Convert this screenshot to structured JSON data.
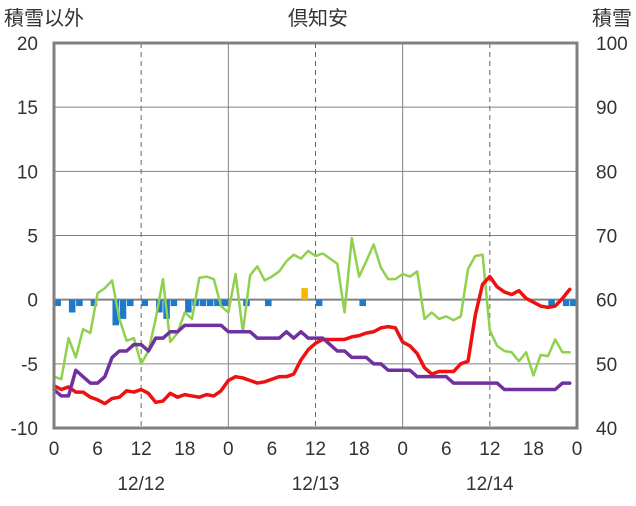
{
  "chart_data": {
    "type": "line",
    "title": "倶知安",
    "left_axis": {
      "label": "積雪以外",
      "ylim": [
        -10,
        20
      ],
      "ticks": [
        "20",
        "15",
        "10",
        "5",
        "0",
        "-5",
        "-10"
      ],
      "tick_values": [
        20,
        15,
        10,
        5,
        0,
        -5,
        -10
      ]
    },
    "right_axis": {
      "label": "積雪",
      "ylim": [
        40,
        100
      ],
      "ticks": [
        "100",
        "90",
        "80",
        "70",
        "60",
        "50",
        "40"
      ],
      "tick_values": [
        100,
        90,
        80,
        70,
        60,
        50,
        40
      ]
    },
    "x_axis": {
      "range_hours": [
        0,
        72
      ],
      "hour_tick_labels": [
        "0",
        "6",
        "12",
        "18",
        "0",
        "6",
        "12",
        "18",
        "0",
        "6",
        "12",
        "18",
        "0"
      ],
      "hour_tick_values": [
        0,
        6,
        12,
        18,
        24,
        30,
        36,
        42,
        48,
        54,
        60,
        66,
        72
      ],
      "date_labels": [
        "12/12",
        "12/13",
        "12/14"
      ],
      "date_label_hours": [
        12,
        36,
        60
      ],
      "day_boundaries": [
        24,
        48
      ],
      "dashed_gridlines": [
        12,
        36,
        60
      ]
    },
    "grid": true,
    "colors": {
      "precip_neg": "#1f78c8",
      "precip_pos": "#f5b800",
      "temperature": "#ee1111",
      "snow_depth": "#7030a0",
      "wind": "#8fd14f",
      "frame": "#808080",
      "zero_line": "#808080",
      "dashed": "#666666"
    },
    "bars": {
      "name": "",
      "axis": "left",
      "x": [
        0,
        2,
        3,
        5,
        8,
        9,
        10,
        12,
        14,
        15,
        16,
        18,
        19,
        20,
        21,
        22,
        23,
        26,
        29,
        34,
        36,
        42
      ],
      "values": [
        -0.5,
        -1,
        -0.5,
        -0.5,
        -2,
        -1.5,
        -0.5,
        -0.5,
        -1,
        -1.5,
        -0.5,
        -1,
        -0.5,
        -0.5,
        -0.5,
        -0.5,
        -0.5,
        -0.5,
        -0.5,
        0.9,
        -0.5,
        -0.5
      ],
      "x_extra": [
        68,
        70,
        71
      ],
      "values_extra": [
        -0.5,
        -0.5,
        -0.5
      ]
    },
    "series": [
      {
        "name": "",
        "key": "wind",
        "axis": "left",
        "x": [
          0,
          1,
          2,
          3,
          4,
          5,
          6,
          7,
          8,
          9,
          10,
          11,
          12,
          13,
          14,
          15,
          16,
          17,
          18,
          19,
          20,
          21,
          22,
          23,
          24,
          25,
          26,
          27,
          28,
          29,
          30,
          31,
          32,
          33,
          34,
          35,
          36,
          37,
          38,
          39,
          40,
          41,
          42,
          43,
          44,
          45,
          46,
          47,
          48,
          49,
          50,
          51,
          52,
          53,
          54,
          55,
          56,
          57,
          58,
          59,
          60,
          61,
          62,
          63,
          64,
          65,
          66,
          67,
          68,
          69,
          70,
          71
        ],
        "values": [
          -6,
          -6.2,
          -3,
          -4.5,
          -2.3,
          -2.6,
          0.5,
          0.9,
          1.5,
          -1.5,
          -3.2,
          -3,
          -5,
          -4,
          -1.5,
          1.6,
          -3.3,
          -2.6,
          -1,
          -1.5,
          1.7,
          1.8,
          1.6,
          -0.5,
          -1,
          2,
          -2.5,
          1.9,
          2.6,
          1.5,
          1.8,
          2.2,
          3,
          3.5,
          3.2,
          3.8,
          3.4,
          3.6,
          3.2,
          2.8,
          -1,
          4.8,
          1.8,
          3,
          4.3,
          2.5,
          1.6,
          1.6,
          2,
          1.8,
          2.2,
          -1.5,
          -1,
          -1.5,
          -1.3,
          -1.6,
          -1.3,
          2.4,
          3.4,
          3.5,
          -2.4,
          -3.6,
          -4,
          -4.1,
          -4.8,
          -4.1,
          -5.9,
          -4.3,
          -4.4,
          -3.1,
          -4.1,
          -4.1
        ],
        "color": "#8fd14f"
      },
      {
        "name": "",
        "key": "temperature",
        "axis": "left",
        "x": [
          0,
          1,
          2,
          3,
          4,
          5,
          6,
          7,
          8,
          9,
          10,
          11,
          12,
          13,
          14,
          15,
          16,
          17,
          18,
          19,
          20,
          21,
          22,
          23,
          24,
          25,
          26,
          27,
          28,
          29,
          30,
          31,
          32,
          33,
          34,
          35,
          36,
          37,
          38,
          39,
          40,
          41,
          42,
          43,
          44,
          45,
          46,
          47,
          48,
          49,
          50,
          51,
          52,
          53,
          54,
          55,
          56,
          57,
          58,
          59,
          60,
          61,
          62,
          63,
          64,
          65,
          66,
          67,
          68,
          69,
          70,
          71
        ],
        "values": [
          -6.7,
          -7.0,
          -6.8,
          -7.2,
          -7.2,
          -7.6,
          -7.8,
          -8.1,
          -7.7,
          -7.6,
          -7.1,
          -7.2,
          -7.0,
          -7.3,
          -8.0,
          -7.9,
          -7.3,
          -7.6,
          -7.4,
          -7.5,
          -7.6,
          -7.4,
          -7.5,
          -7.1,
          -6.3,
          -6.0,
          -6.1,
          -6.3,
          -6.5,
          -6.4,
          -6.2,
          -6.0,
          -6.0,
          -5.8,
          -4.7,
          -3.9,
          -3.4,
          -3.1,
          -3.1,
          -3.1,
          -3.1,
          -2.9,
          -2.8,
          -2.6,
          -2.5,
          -2.2,
          -2.1,
          -2.2,
          -3.3,
          -3.6,
          -4.2,
          -5.3,
          -5.8,
          -5.6,
          -5.6,
          -5.6,
          -5.0,
          -4.8,
          -1.2,
          1.2,
          1.8,
          1.0,
          0.6,
          0.4,
          0.7,
          0.1,
          -0.2,
          -0.5,
          -0.6,
          -0.5,
          0.1,
          0.8
        ],
        "color": "#ee1111"
      },
      {
        "name": "",
        "key": "snow_depth",
        "axis": "right",
        "x": [
          0,
          1,
          2,
          3,
          4,
          5,
          6,
          7,
          8,
          9,
          10,
          11,
          12,
          13,
          14,
          15,
          16,
          17,
          18,
          19,
          20,
          21,
          22,
          23,
          24,
          25,
          26,
          27,
          28,
          29,
          30,
          31,
          32,
          33,
          34,
          35,
          36,
          37,
          38,
          39,
          40,
          41,
          42,
          43,
          44,
          45,
          46,
          47,
          48,
          49,
          50,
          51,
          52,
          53,
          54,
          55,
          56,
          57,
          58,
          59,
          60,
          61,
          62,
          63,
          64,
          65,
          66,
          67,
          68,
          69,
          70,
          71
        ],
        "values": [
          46,
          45,
          45,
          49,
          48,
          47,
          47,
          48,
          51,
          52,
          52,
          53,
          53,
          52,
          54,
          54,
          55,
          55,
          56,
          56,
          56,
          56,
          56,
          56,
          55,
          55,
          55,
          55,
          54,
          54,
          54,
          54,
          55,
          54,
          55,
          54,
          54,
          54,
          53,
          52,
          52,
          51,
          51,
          51,
          50,
          50,
          49,
          49,
          49,
          49,
          48,
          48,
          48,
          48,
          48,
          47,
          47,
          47,
          47,
          47,
          47,
          47,
          46,
          46,
          46,
          46,
          46,
          46,
          46,
          46,
          47,
          47
        ],
        "color": "#7030a0"
      }
    ]
  }
}
